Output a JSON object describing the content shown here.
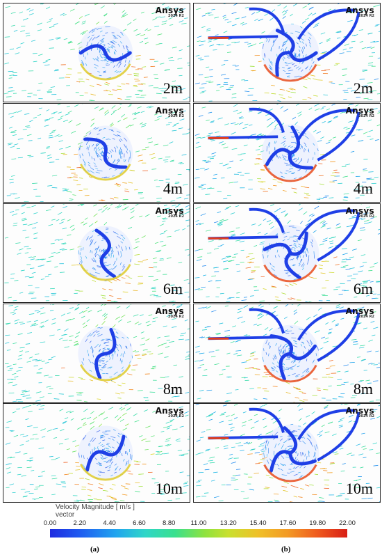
{
  "panels": {
    "a": [
      {
        "distance": "2m",
        "brand": "Ansys",
        "version": "2024 R2"
      },
      {
        "distance": "4m",
        "brand": "Ansys",
        "version": "2024 R2"
      },
      {
        "distance": "6m",
        "brand": "Ansys",
        "version": "2024 R2"
      },
      {
        "distance": "8m",
        "brand": "Ansys",
        "version": "2024 R2"
      },
      {
        "distance": "10m",
        "brand": "Ansys",
        "version": "2024 R2"
      }
    ],
    "b": [
      {
        "distance": "2m",
        "brand": "Ansys",
        "version": "2024 R2"
      },
      {
        "distance": "4m",
        "brand": "Ansys",
        "version": "2024 R2"
      },
      {
        "distance": "6m",
        "brand": "Ansys",
        "version": "2024 R2"
      },
      {
        "distance": "8m",
        "brand": "Ansys",
        "version": "2024 R2"
      },
      {
        "distance": "10m",
        "brand": "Ansys",
        "version": "2024 R2"
      }
    ]
  },
  "legend": {
    "title": "Velocity Magnitude [ m/s ]",
    "subtitle": "vector",
    "ticks": [
      "0.00",
      "2.20",
      "4.40",
      "6.60",
      "8.80",
      "11.00",
      "13.20",
      "15.40",
      "17.60",
      "19.80",
      "22.00"
    ],
    "colors": {
      "low": "#1e2be0",
      "mid": "#39e08e",
      "high": "#d81f16"
    }
  },
  "captions": {
    "a": "(a)",
    "b": "(b)"
  }
}
